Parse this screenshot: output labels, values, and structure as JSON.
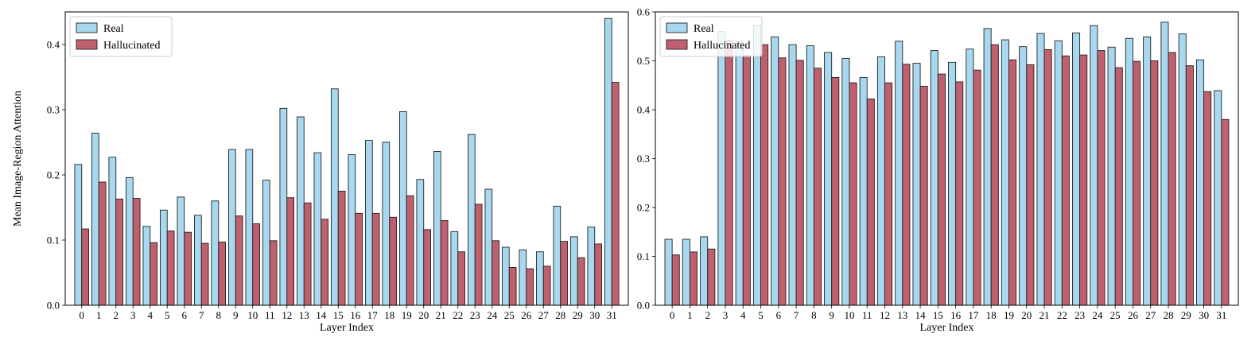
{
  "chart_data": [
    {
      "type": "bar",
      "xlabel": "Layer Index",
      "ylabel": "Mean Image-Region Attention",
      "ylim": [
        0,
        0.45
      ],
      "yticks": [
        "0.0",
        "0.1",
        "0.2",
        "0.3",
        "0.4"
      ],
      "categories": [
        "0",
        "1",
        "2",
        "3",
        "4",
        "5",
        "6",
        "7",
        "8",
        "9",
        "10",
        "11",
        "12",
        "13",
        "14",
        "15",
        "16",
        "17",
        "18",
        "19",
        "20",
        "21",
        "22",
        "23",
        "24",
        "25",
        "26",
        "27",
        "28",
        "29",
        "30",
        "31"
      ],
      "legend_position": "top-left",
      "grid": false,
      "series": [
        {
          "name": "Real",
          "color": "#a8d8ef",
          "values": [
            0.216,
            0.264,
            0.227,
            0.196,
            0.121,
            0.146,
            0.166,
            0.138,
            0.16,
            0.239,
            0.239,
            0.192,
            0.302,
            0.289,
            0.234,
            0.332,
            0.231,
            0.253,
            0.25,
            0.297,
            0.193,
            0.236,
            0.113,
            0.262,
            0.178,
            0.089,
            0.085,
            0.082,
            0.152,
            0.105,
            0.12,
            0.44
          ]
        },
        {
          "name": "Hallucinated",
          "color": "#c0606e",
          "values": [
            0.117,
            0.189,
            0.163,
            0.164,
            0.096,
            0.114,
            0.112,
            0.095,
            0.097,
            0.137,
            0.125,
            0.099,
            0.165,
            0.157,
            0.132,
            0.175,
            0.141,
            0.141,
            0.135,
            0.168,
            0.116,
            0.13,
            0.082,
            0.155,
            0.099,
            0.058,
            0.056,
            0.06,
            0.098,
            0.073,
            0.094,
            0.342
          ]
        }
      ]
    },
    {
      "type": "bar",
      "xlabel": "Layer Index",
      "ylabel": "",
      "ylim": [
        0,
        0.6
      ],
      "yticks": [
        "0.0",
        "0.1",
        "0.2",
        "0.3",
        "0.4",
        "0.5",
        "0.6"
      ],
      "categories": [
        "0",
        "1",
        "2",
        "3",
        "4",
        "5",
        "6",
        "7",
        "8",
        "9",
        "10",
        "11",
        "12",
        "13",
        "14",
        "15",
        "16",
        "17",
        "18",
        "19",
        "20",
        "21",
        "22",
        "23",
        "24",
        "25",
        "26",
        "27",
        "28",
        "29",
        "30",
        "31"
      ],
      "legend_position": "top-left",
      "grid": false,
      "series": [
        {
          "name": "Real",
          "color": "#a8d8ef",
          "values": [
            0.135,
            0.135,
            0.14,
            0.56,
            0.54,
            0.572,
            0.549,
            0.533,
            0.531,
            0.517,
            0.505,
            0.466,
            0.508,
            0.54,
            0.495,
            0.521,
            0.497,
            0.524,
            0.566,
            0.543,
            0.529,
            0.556,
            0.541,
            0.557,
            0.572,
            0.528,
            0.546,
            0.549,
            0.579,
            0.555,
            0.502,
            0.439
          ]
        },
        {
          "name": "Hallucinated",
          "color": "#c0606e",
          "values": [
            0.103,
            0.109,
            0.115,
            0.542,
            0.511,
            0.533,
            0.506,
            0.501,
            0.485,
            0.466,
            0.455,
            0.422,
            0.455,
            0.493,
            0.448,
            0.473,
            0.457,
            0.481,
            0.533,
            0.502,
            0.492,
            0.523,
            0.51,
            0.512,
            0.521,
            0.486,
            0.499,
            0.5,
            0.517,
            0.49,
            0.437,
            0.38
          ]
        }
      ]
    }
  ]
}
